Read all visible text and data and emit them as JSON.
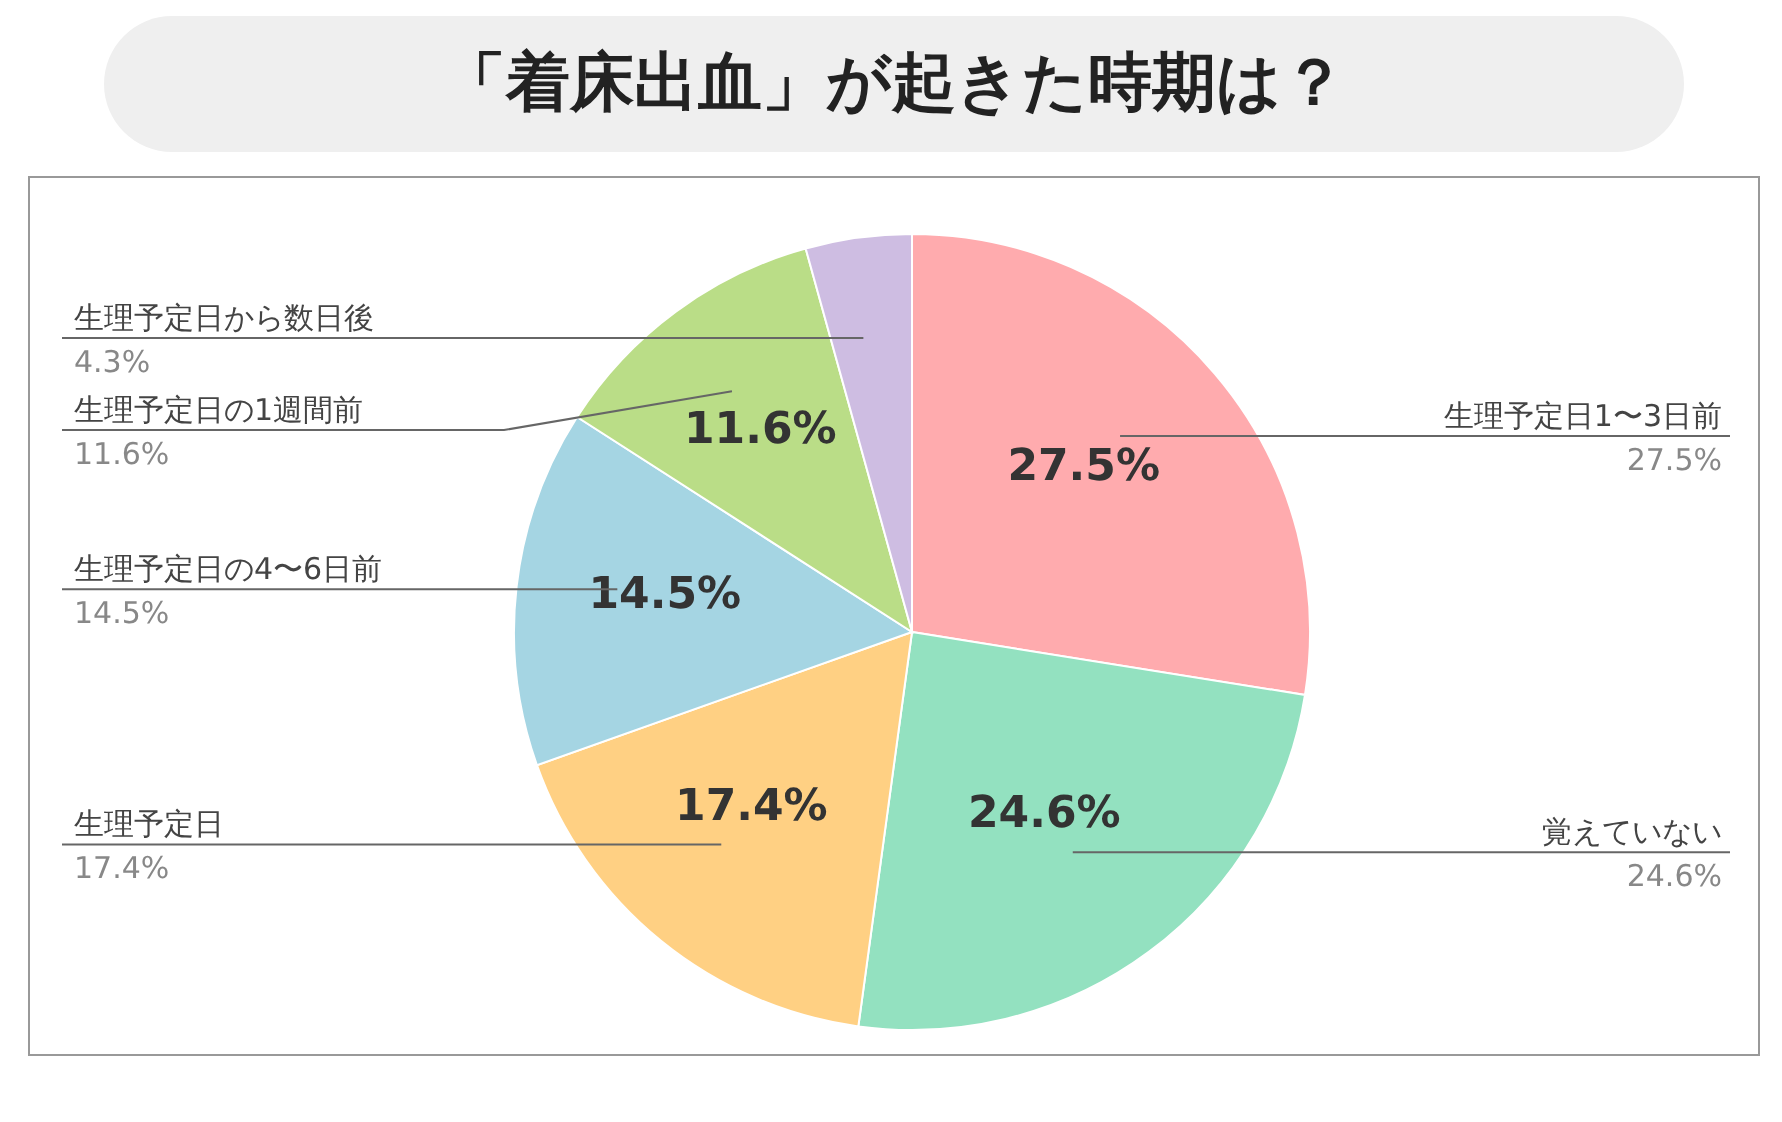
{
  "chart_data": {
    "type": "pie",
    "title": "「着床出血」が起きた時期は？",
    "categories": [
      "生理予定日1〜3日前",
      "覚えていない",
      "生理予定日",
      "生理予定日の4〜6日前",
      "生理予定日の1週間前",
      "生理予定日から数日後"
    ],
    "values": [
      27.5,
      24.6,
      17.4,
      14.5,
      11.6,
      4.3
    ],
    "value_labels": [
      "27.5%",
      "24.6%",
      "17.4%",
      "14.5%",
      "11.6%",
      null
    ],
    "annotations": [
      "27.5%",
      "24.6%",
      "17.4%",
      "14.5%",
      "11.6%",
      "4.3%"
    ],
    "colors": [
      "#ffabae",
      "#93e1c0",
      "#ffd083",
      "#a5d5e3",
      "#badd87",
      "#cebde2"
    ]
  }
}
